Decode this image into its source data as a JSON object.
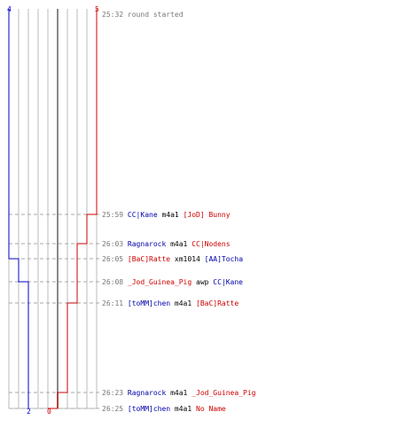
{
  "colors": {
    "blue_team": "#0000cc",
    "red_team": "#cc0000",
    "timestamp": "#777777",
    "grid": "#bbbbbb",
    "dash": "#aaaaaa"
  },
  "score_labels": {
    "blue_start": "4",
    "red_start": "5",
    "blue_end": "2",
    "red_end": "0"
  },
  "chart_data": {
    "type": "line",
    "series": [
      {
        "team": "blue",
        "alive": [
          4,
          4,
          4,
          3,
          2,
          2,
          2,
          2
        ],
        "time": [
          "25:32",
          "25:59",
          "26:03",
          "26:05",
          "26:08",
          "26:11",
          "26:23",
          "26:25"
        ]
      },
      {
        "team": "red",
        "alive": [
          5,
          4,
          3,
          3,
          3,
          2,
          1,
          0
        ],
        "time": [
          "25:32",
          "25:59",
          "26:03",
          "26:05",
          "26:08",
          "26:11",
          "26:23",
          "26:25"
        ]
      }
    ]
  },
  "events": [
    {
      "time": "25:32",
      "text": "round started"
    },
    {
      "time": "25:59",
      "killer": "CC|Kane",
      "killer_team": "blue",
      "weapon": "m4a1",
      "victim": "[JoD] Bunny",
      "victim_team": "red"
    },
    {
      "time": "26:03",
      "killer": "Ragnarock",
      "killer_team": "blue",
      "weapon": "m4a1",
      "victim": "CC|Nodens",
      "victim_team": "red"
    },
    {
      "time": "26:05",
      "killer": "[BaC]Ratte",
      "killer_team": "red",
      "weapon": "xm1014",
      "victim": "[AA]Tocha",
      "victim_team": "blue"
    },
    {
      "time": "26:08",
      "killer": "_Jod_Guinea_Pig",
      "killer_team": "red",
      "weapon": "awp",
      "victim": "CC|Kane",
      "victim_team": "blue"
    },
    {
      "time": "26:11",
      "killer": "[toMM]chen",
      "killer_team": "blue",
      "weapon": "m4a1",
      "victim": "[BaC]Ratte",
      "victim_team": "red"
    },
    {
      "time": "26:23",
      "killer": "Ragnarock",
      "killer_team": "blue",
      "weapon": "m4a1",
      "victim": "_Jod_Guinea_Pig",
      "victim_team": "red"
    },
    {
      "time": "26:25",
      "killer": "[toMM]chen",
      "killer_team": "blue",
      "weapon": "m4a1",
      "victim": "No Name",
      "victim_team": "red"
    }
  ]
}
